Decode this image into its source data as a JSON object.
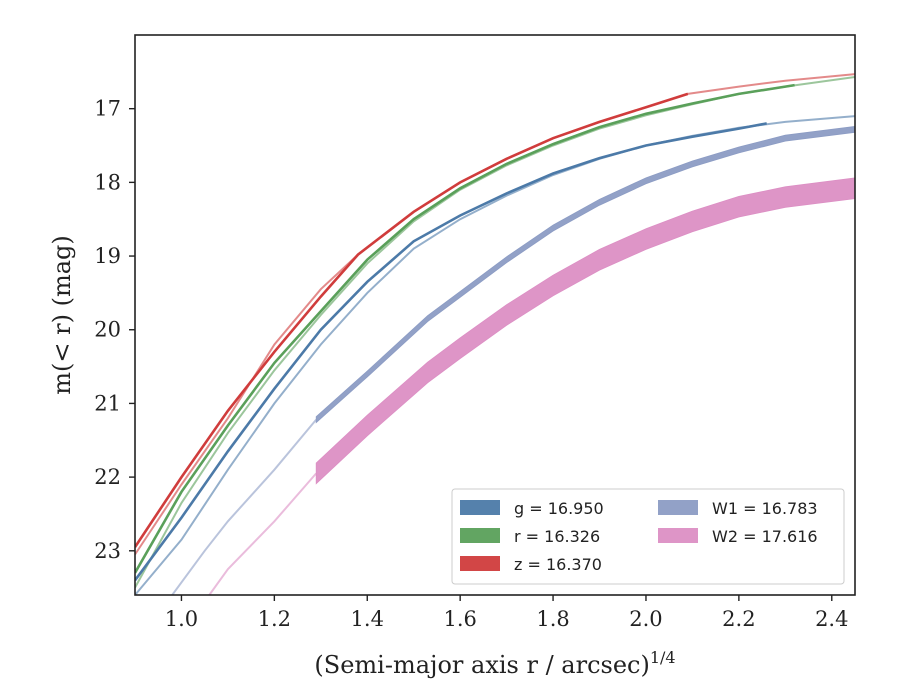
{
  "chart_data": {
    "type": "line",
    "xlabel": "(Semi-major axis r / arcsec)",
    "xlabel_exponent": "1/4",
    "ylabel": "m(< r) (mag)",
    "xlim": [
      0.9,
      2.45
    ],
    "ylim": [
      23.6,
      16.0
    ],
    "y_inverted": true,
    "grid": false,
    "legend_position": "lower-right",
    "x_ticks": [
      "1.0",
      "1.2",
      "1.4",
      "1.6",
      "1.8",
      "2.0",
      "2.2",
      "2.4"
    ],
    "y_ticks": [
      "17",
      "18",
      "19",
      "20",
      "21",
      "22",
      "23"
    ],
    "series": [
      {
        "name": "g",
        "legend_label": "g = 16.950",
        "color": "#4c7aa8",
        "band_width": 0.02,
        "x": [
          0.9,
          1.0,
          1.1,
          1.2,
          1.3,
          1.4,
          1.5,
          1.6,
          1.7,
          1.8,
          1.9,
          2.0,
          2.1,
          2.2,
          2.26
        ],
        "y": [
          23.4,
          22.55,
          21.65,
          20.8,
          20.0,
          19.35,
          18.8,
          18.45,
          18.15,
          17.88,
          17.67,
          17.5,
          17.38,
          17.27,
          17.2
        ],
        "extrap_x": [
          0.9,
          1.0,
          1.1,
          1.2,
          1.3,
          1.4,
          1.5,
          1.6,
          1.7,
          1.8,
          1.9,
          2.0,
          2.1,
          2.2,
          2.3,
          2.45
        ],
        "extrap_y": [
          23.6,
          22.85,
          21.9,
          21.0,
          20.2,
          19.5,
          18.9,
          18.5,
          18.18,
          17.9,
          17.68,
          17.5,
          17.37,
          17.26,
          17.18,
          17.1
        ]
      },
      {
        "name": "r",
        "legend_label": "r = 16.326",
        "color": "#5aa05a",
        "band_width": 0.02,
        "x": [
          0.9,
          1.0,
          1.1,
          1.2,
          1.3,
          1.4,
          1.5,
          1.6,
          1.7,
          1.8,
          1.9,
          2.0,
          2.1,
          2.2,
          2.3,
          2.32
        ],
        "y": [
          23.3,
          22.2,
          21.3,
          20.45,
          19.75,
          19.05,
          18.5,
          18.08,
          17.75,
          17.48,
          17.25,
          17.07,
          16.93,
          16.8,
          16.7,
          16.68
        ],
        "extrap_x": [
          0.9,
          1.0,
          1.1,
          1.2,
          1.3,
          1.4,
          1.5,
          1.6,
          1.7,
          1.8,
          1.9,
          2.0,
          2.1,
          2.2,
          2.3,
          2.45
        ],
        "extrap_y": [
          23.5,
          22.35,
          21.4,
          20.55,
          19.8,
          19.1,
          18.53,
          18.1,
          17.77,
          17.5,
          17.27,
          17.09,
          16.94,
          16.8,
          16.7,
          16.57
        ]
      },
      {
        "name": "z",
        "legend_label": "z = 16.370",
        "color": "#d03c3c",
        "band_width": 0.03,
        "x": [
          0.9,
          1.0,
          1.1,
          1.2,
          1.3,
          1.38,
          1.5,
          1.6,
          1.7,
          1.8,
          1.9,
          2.0,
          2.09
        ],
        "y": [
          22.95,
          22.0,
          21.1,
          20.3,
          19.55,
          18.98,
          18.4,
          18.0,
          17.68,
          17.4,
          17.18,
          16.98,
          16.8
        ],
        "extrap_x": [
          0.9,
          1.0,
          1.1,
          1.2,
          1.3,
          1.38,
          1.5,
          1.6,
          1.7,
          1.8,
          1.9,
          2.0,
          2.09,
          2.2,
          2.3,
          2.45
        ],
        "extrap_y": [
          23.05,
          22.1,
          21.2,
          20.2,
          19.45,
          18.98,
          18.4,
          18.0,
          17.68,
          17.4,
          17.18,
          16.98,
          16.8,
          16.7,
          16.62,
          16.53
        ]
      },
      {
        "name": "W1",
        "legend_label": "W1 = 16.783",
        "color": "#8c9cc4",
        "band_width": 0.08,
        "x": [
          1.29,
          1.4,
          1.53,
          1.6,
          1.7,
          1.8,
          1.9,
          2.0,
          2.1,
          2.2,
          2.3,
          2.45
        ],
        "y": [
          21.22,
          20.6,
          19.85,
          19.52,
          19.05,
          18.62,
          18.27,
          17.98,
          17.75,
          17.56,
          17.4,
          17.28
        ],
        "extrap_x": [
          0.98,
          1.05,
          1.1,
          1.2,
          1.29
        ],
        "extrap_y": [
          23.6,
          23.0,
          22.6,
          21.9,
          21.22
        ]
      },
      {
        "name": "W2",
        "legend_label": "W2 = 17.616",
        "color": "#dc8fc4",
        "band_width": 0.28,
        "x": [
          1.29,
          1.4,
          1.53,
          1.6,
          1.7,
          1.8,
          1.9,
          2.0,
          2.1,
          2.2,
          2.3,
          2.45
        ],
        "y": [
          21.95,
          21.3,
          20.58,
          20.25,
          19.8,
          19.4,
          19.05,
          18.77,
          18.53,
          18.33,
          18.2,
          18.08
        ],
        "extrap_x": [
          1.06,
          1.1,
          1.2,
          1.29
        ],
        "extrap_y": [
          23.6,
          23.25,
          22.6,
          21.95
        ]
      }
    ]
  }
}
